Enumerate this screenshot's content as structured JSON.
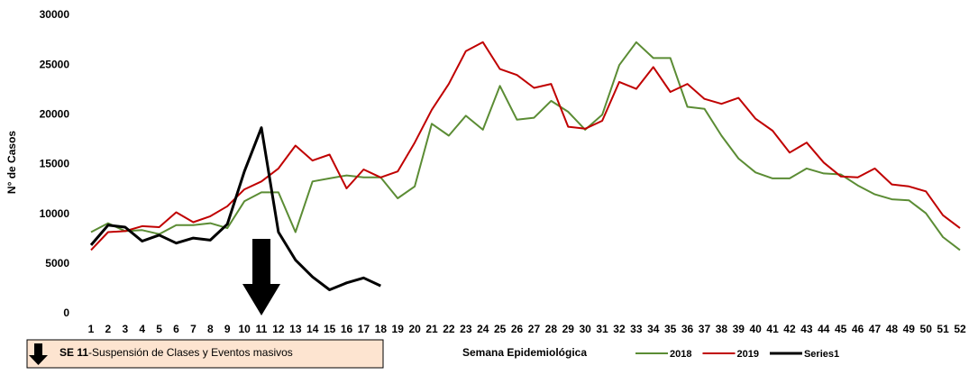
{
  "chart_data": {
    "type": "line",
    "ylabel": "N° de Casos",
    "xlabel": "Semana Epidemiológica",
    "annotation": {
      "bold": "SE 11",
      "text": "-Suspensión de Clases  y Eventos masivos"
    },
    "annotation_week_index": 10,
    "categories": [
      "1",
      "2",
      "3",
      "4",
      "5",
      "6",
      "7",
      "8",
      "9",
      "10",
      "11",
      "12",
      "13",
      "14",
      "15",
      "16",
      "17",
      "18",
      "19",
      "20",
      "21",
      "22",
      "23",
      "24",
      "25",
      "26",
      "27",
      "28",
      "29",
      "30",
      "31",
      "32",
      "33",
      "34",
      "35",
      "36",
      "37",
      "38",
      "39",
      "40",
      "41",
      "42",
      "43",
      "44",
      "45",
      "46",
      "47",
      "48",
      "49",
      "50",
      "51",
      "52"
    ],
    "series": [
      {
        "name": "2018",
        "color": "#5b8c34",
        "width": 2,
        "values": [
          8200,
          9100,
          8300,
          8400,
          8000,
          8900,
          8900,
          9100,
          8600,
          11300,
          12200,
          12200,
          8200,
          13300,
          13600,
          13900,
          13700,
          13700,
          11600,
          12800,
          19100,
          17900,
          19900,
          18500,
          22900,
          19500,
          19700,
          21400,
          20300,
          18500,
          20000,
          25000,
          27300,
          25700,
          25700,
          20800,
          20600,
          17900,
          15600,
          14200,
          13600,
          13600,
          14600,
          14100,
          14000,
          12900,
          12000,
          11500,
          11400,
          10100,
          7700,
          6400
        ]
      },
      {
        "name": "2019",
        "color": "#c00000",
        "width": 2,
        "values": [
          6400,
          8200,
          8300,
          8800,
          8700,
          10200,
          9200,
          9800,
          10800,
          12500,
          13300,
          14600,
          16900,
          15400,
          16000,
          12600,
          14500,
          13700,
          14300,
          17200,
          20500,
          23100,
          26400,
          27300,
          24600,
          24000,
          22700,
          23100,
          18800,
          18600,
          19400,
          23300,
          22600,
          24800,
          22300,
          23100,
          21600,
          21100,
          21700,
          19600,
          18400,
          16200,
          17200,
          15200,
          13800,
          13700,
          14600,
          13000,
          12800,
          12300,
          9900,
          8600
        ]
      },
      {
        "name": "Series1",
        "color": "#000000",
        "width": 3,
        "values": [
          6900,
          8900,
          8700,
          7300,
          7900,
          7100,
          7600,
          7400,
          9000,
          14300,
          18700,
          8200,
          5400,
          3700,
          2400,
          3100,
          3600,
          2800,
          null,
          null,
          null,
          null,
          null,
          null,
          null,
          null,
          null,
          null,
          null,
          null,
          null,
          null,
          null,
          null,
          null,
          null,
          null,
          null,
          null,
          null,
          null,
          null,
          null,
          null,
          null,
          null,
          null,
          null,
          null,
          null,
          null,
          null
        ]
      }
    ],
    "ylim": [
      0,
      30000
    ],
    "yticks": [
      0,
      5000,
      10000,
      15000,
      20000,
      25000,
      30000
    ],
    "grid": false
  }
}
